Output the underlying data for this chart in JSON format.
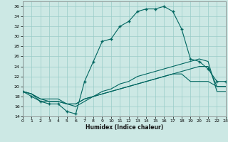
{
  "xlabel": "Humidex (Indice chaleur)",
  "bg_color": "#cce8e4",
  "grid_color": "#99ccc8",
  "line_color": "#006660",
  "xlim": [
    0,
    23
  ],
  "ylim": [
    14,
    37
  ],
  "yticks": [
    14,
    16,
    18,
    20,
    22,
    24,
    26,
    28,
    30,
    32,
    34,
    36
  ],
  "xticks": [
    0,
    1,
    2,
    3,
    4,
    5,
    6,
    7,
    8,
    9,
    10,
    11,
    12,
    13,
    14,
    15,
    16,
    17,
    18,
    19,
    20,
    21,
    22,
    23
  ],
  "line1_x": [
    0,
    1,
    2,
    3,
    4,
    5,
    6,
    7,
    8,
    9,
    10,
    11,
    12,
    13,
    14,
    15,
    16,
    17,
    18,
    19,
    20,
    21,
    22,
    23
  ],
  "line1_y": [
    19,
    18,
    17,
    16.5,
    16.5,
    15.0,
    14.5,
    21,
    25,
    29,
    29.5,
    32,
    33,
    35,
    35.5,
    35.5,
    36,
    35,
    31.5,
    25.5,
    25,
    23.5,
    21,
    21
  ],
  "line2_x": [
    0,
    1,
    2,
    3,
    4,
    5,
    6,
    7,
    8,
    9,
    10,
    11,
    12,
    13,
    14,
    15,
    16,
    17,
    18,
    19,
    20,
    21,
    22,
    23
  ],
  "line2_y": [
    19,
    18.5,
    17,
    17,
    17,
    16.5,
    16,
    17,
    18,
    19,
    19.5,
    20.5,
    21,
    22,
    22.5,
    23,
    23.5,
    24,
    24.5,
    25,
    25.5,
    25,
    19,
    19
  ],
  "line3_x": [
    0,
    1,
    2,
    3,
    4,
    5,
    6,
    7,
    8,
    9,
    10,
    11,
    12,
    13,
    14,
    15,
    16,
    17,
    18,
    19,
    20,
    21,
    22,
    23
  ],
  "line3_y": [
    19,
    18.5,
    17.5,
    17.5,
    17.5,
    16.5,
    16.5,
    17.5,
    18,
    18.5,
    19,
    19.5,
    20,
    20.5,
    21,
    21.5,
    22,
    22.5,
    23,
    23.5,
    24,
    24,
    20,
    20
  ],
  "line4_x": [
    0,
    1,
    2,
    3,
    4,
    5,
    6,
    7,
    8,
    9,
    10,
    11,
    12,
    13,
    14,
    15,
    16,
    17,
    18,
    19,
    20,
    21,
    22,
    23
  ],
  "line4_y": [
    19,
    18.5,
    17.5,
    17,
    17,
    16.5,
    16.5,
    17.5,
    18,
    18.5,
    19,
    19.5,
    20,
    20.5,
    21,
    21.5,
    22,
    22.5,
    22.5,
    21,
    21,
    21,
    20,
    20
  ]
}
